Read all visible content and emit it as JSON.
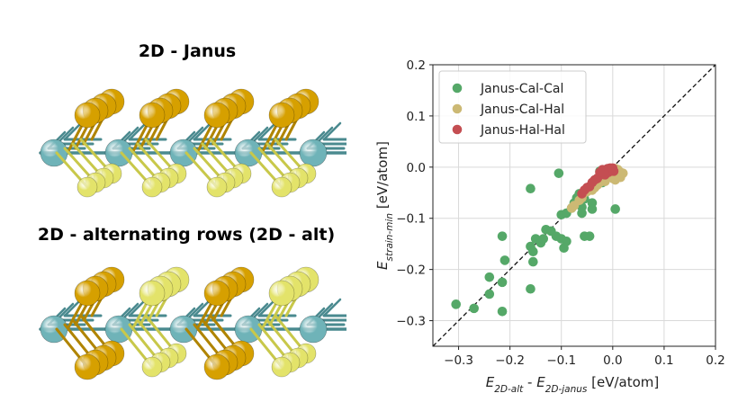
{
  "structures": {
    "janus_title": "2D - Janus",
    "alt_title": "2D - alternating rows (2D - alt)",
    "colors": {
      "metal": "#6fb3b8",
      "chalcogen": "#d6a000",
      "halogen": "#e3e36a",
      "bond": "#4a8a8f"
    }
  },
  "chart_data": {
    "type": "scatter",
    "xlabel": "E_{2D-alt} - E_{2D-janus} [eV/atom]",
    "ylabel": "E_{strain-min} [eV/atom]",
    "xlim": [
      -0.35,
      0.2
    ],
    "ylim": [
      -0.35,
      0.2
    ],
    "xticks": [
      "−0.3",
      "−0.2",
      "−0.1",
      "0.0",
      "0.1",
      "0.2"
    ],
    "yticks": [
      "−0.3",
      "−0.2",
      "−0.1",
      "0.0",
      "0.1",
      "0.2"
    ],
    "grid": true,
    "legend_position": "upper-left",
    "diagonal": "y = x (dashed)",
    "series": [
      {
        "name": "Janus-Cal-Cal",
        "color": "#55a868",
        "points": [
          [
            -0.305,
            -0.268
          ],
          [
            -0.27,
            -0.276
          ],
          [
            -0.24,
            -0.215
          ],
          [
            -0.24,
            -0.248
          ],
          [
            -0.215,
            -0.282
          ],
          [
            -0.215,
            -0.225
          ],
          [
            -0.215,
            -0.135
          ],
          [
            -0.21,
            -0.182
          ],
          [
            -0.16,
            -0.238
          ],
          [
            -0.16,
            -0.042
          ],
          [
            -0.16,
            -0.155
          ],
          [
            -0.155,
            -0.165
          ],
          [
            -0.155,
            -0.185
          ],
          [
            -0.15,
            -0.14
          ],
          [
            -0.14,
            -0.148
          ],
          [
            -0.135,
            -0.14
          ],
          [
            -0.13,
            -0.122
          ],
          [
            -0.12,
            -0.125
          ],
          [
            -0.11,
            -0.135
          ],
          [
            -0.105,
            -0.012
          ],
          [
            -0.1,
            -0.14
          ],
          [
            -0.1,
            -0.093
          ],
          [
            -0.095,
            -0.158
          ],
          [
            -0.09,
            -0.145
          ],
          [
            -0.09,
            -0.09
          ],
          [
            -0.08,
            -0.08
          ],
          [
            -0.075,
            -0.07
          ],
          [
            -0.07,
            -0.06
          ],
          [
            -0.065,
            -0.052
          ],
          [
            -0.06,
            -0.078
          ],
          [
            -0.06,
            -0.09
          ],
          [
            -0.055,
            -0.062
          ],
          [
            -0.055,
            -0.135
          ],
          [
            -0.05,
            -0.045
          ],
          [
            -0.045,
            -0.135
          ],
          [
            -0.04,
            -0.07
          ],
          [
            -0.04,
            -0.082
          ],
          [
            -0.03,
            -0.022
          ],
          [
            -0.025,
            -0.008
          ],
          [
            -0.02,
            -0.03
          ],
          [
            0.005,
            -0.082
          ]
        ]
      },
      {
        "name": "Janus-Cal-Hal",
        "color": "#ccb974",
        "points": [
          [
            -0.08,
            -0.08
          ],
          [
            -0.075,
            -0.075
          ],
          [
            -0.065,
            -0.065
          ],
          [
            -0.06,
            -0.06
          ],
          [
            -0.055,
            -0.05
          ],
          [
            -0.05,
            -0.048
          ],
          [
            -0.045,
            -0.04
          ],
          [
            -0.04,
            -0.045
          ],
          [
            -0.035,
            -0.03
          ],
          [
            -0.03,
            -0.035
          ],
          [
            -0.03,
            -0.025
          ],
          [
            -0.025,
            -0.02
          ],
          [
            -0.02,
            -0.022
          ],
          [
            -0.02,
            -0.012
          ],
          [
            -0.015,
            -0.028
          ],
          [
            -0.01,
            -0.01
          ],
          [
            -0.01,
            -0.02
          ],
          [
            -0.005,
            -0.005
          ],
          [
            -0.005,
            -0.018
          ],
          [
            0.0,
            -0.008
          ],
          [
            0.0,
            -0.022
          ],
          [
            0.005,
            -0.012
          ],
          [
            0.005,
            -0.003
          ],
          [
            0.01,
            -0.015
          ],
          [
            0.01,
            -0.005
          ],
          [
            0.015,
            -0.01
          ],
          [
            0.015,
            -0.02
          ],
          [
            0.02,
            -0.012
          ],
          [
            -0.015,
            -0.01
          ],
          [
            -0.025,
            -0.03
          ],
          [
            0.005,
            -0.025
          ],
          [
            -0.035,
            -0.04
          ]
        ]
      },
      {
        "name": "Janus-Hal-Hal",
        "color": "#c44e52",
        "points": [
          [
            -0.06,
            -0.052
          ],
          [
            -0.055,
            -0.045
          ],
          [
            -0.05,
            -0.04
          ],
          [
            -0.045,
            -0.038
          ],
          [
            -0.04,
            -0.03
          ],
          [
            -0.035,
            -0.025
          ],
          [
            -0.03,
            -0.022
          ],
          [
            -0.025,
            -0.016
          ],
          [
            -0.02,
            -0.012
          ],
          [
            -0.015,
            -0.008
          ],
          [
            -0.012,
            -0.005
          ],
          [
            -0.01,
            -0.003
          ],
          [
            -0.008,
            -0.01
          ],
          [
            -0.005,
            -0.002
          ],
          [
            -0.003,
            -0.006
          ],
          [
            0.0,
            -0.002
          ],
          [
            -0.02,
            -0.005
          ],
          [
            -0.015,
            -0.015
          ],
          [
            -0.025,
            -0.01
          ],
          [
            0.002,
            -0.008
          ]
        ]
      }
    ]
  }
}
